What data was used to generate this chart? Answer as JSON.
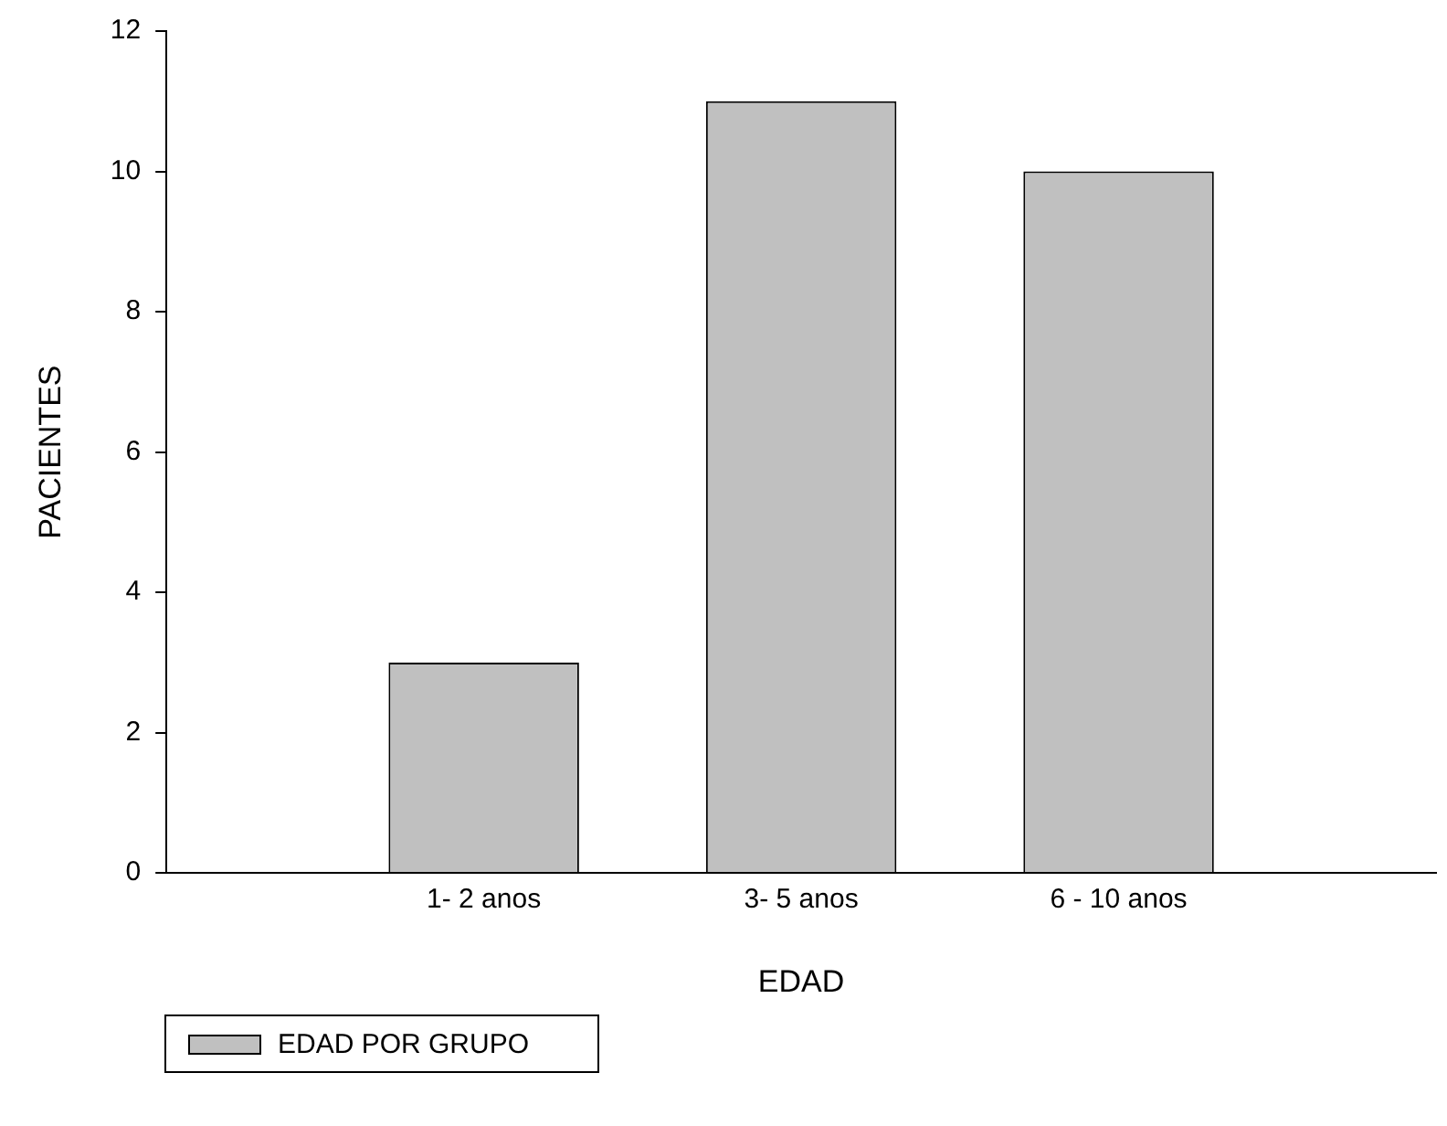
{
  "chart_data": {
    "type": "bar",
    "xlabel": "EDAD",
    "ylabel": "PACIENTES",
    "categories": [
      "1- 2 anos",
      "3- 5 anos",
      "6 - 10 anos"
    ],
    "series": [
      {
        "name": "EDAD POR GRUPO",
        "color": "#c0c0c0",
        "values": [
          3,
          11,
          10
        ]
      }
    ],
    "ylim": [
      0,
      12
    ],
    "yticks": [
      0,
      2,
      4,
      6,
      8,
      10,
      12
    ],
    "grid": false,
    "legend": "bottom left"
  }
}
